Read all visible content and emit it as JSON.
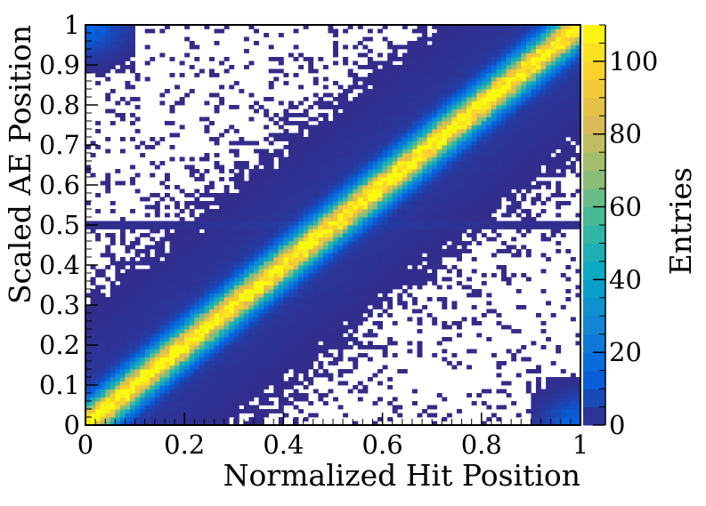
{
  "chart_data": {
    "type": "heatmap",
    "title": "",
    "xlabel": "Normalized Hit Position",
    "ylabel": "Scaled AE Position",
    "zlabel": "Entries",
    "xlim": [
      0,
      1
    ],
    "ylim": [
      0,
      1
    ],
    "zlim": [
      0,
      110
    ],
    "x_ticks": [
      0,
      0.2,
      0.4,
      0.6,
      0.8,
      1
    ],
    "x_tick_labels": [
      "0",
      "0.2",
      "0.4",
      "0.6",
      "0.8",
      "1"
    ],
    "y_ticks": [
      0,
      0.1,
      0.2,
      0.3,
      0.4,
      0.5,
      0.6,
      0.7,
      0.8,
      0.9,
      1
    ],
    "y_tick_labels": [
      "0",
      "0.1",
      "0.2",
      "0.3",
      "0.4",
      "0.5",
      "0.6",
      "0.7",
      "0.8",
      "0.9",
      "1"
    ],
    "z_ticks": [
      0,
      20,
      40,
      60,
      80,
      100
    ],
    "z_tick_labels": [
      "0",
      "20",
      "40",
      "60",
      "80",
      "100"
    ],
    "bins": [
      100,
      100
    ],
    "features": [
      {
        "name": "diagonal band",
        "relation": "y = x",
        "peak_entries": 110,
        "width": 0.04
      },
      {
        "name": "top-left cluster",
        "x_range": [
          0,
          0.1
        ],
        "y_range": [
          0.88,
          1
        ],
        "peak_entries": 15
      },
      {
        "name": "bottom-right cluster",
        "x_range": [
          0.9,
          1
        ],
        "y_range": [
          0,
          0.12
        ],
        "peak_entries": 15
      },
      {
        "name": "horizontal line",
        "y": 0.5,
        "peak_entries": 2
      }
    ],
    "colormap": [
      "#352a87",
      "#0363e1",
      "#1485d4",
      "#06a7c6",
      "#38b99e",
      "#92bf73",
      "#d9ba56",
      "#fcce2e",
      "#f9fb0e"
    ]
  }
}
